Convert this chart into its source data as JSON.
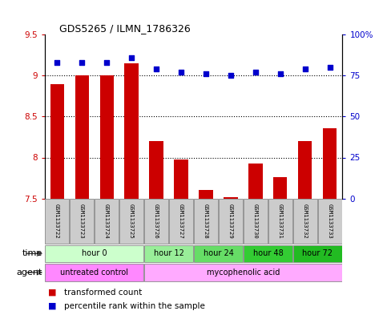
{
  "title": "GDS5265 / ILMN_1786326",
  "samples": [
    "GSM1133722",
    "GSM1133723",
    "GSM1133724",
    "GSM1133725",
    "GSM1133726",
    "GSM1133727",
    "GSM1133728",
    "GSM1133729",
    "GSM1133730",
    "GSM1133731",
    "GSM1133732",
    "GSM1133733"
  ],
  "transformed_count": [
    8.9,
    9.0,
    9.0,
    9.15,
    8.2,
    7.98,
    7.6,
    7.52,
    7.93,
    7.76,
    8.2,
    8.36
  ],
  "percentile_rank": [
    83,
    83,
    83,
    86,
    79,
    77,
    76,
    75,
    77,
    76,
    79,
    80
  ],
  "ylim_left": [
    7.5,
    9.5
  ],
  "ylim_right": [
    0,
    100
  ],
  "yticks_left": [
    7.5,
    8.0,
    8.5,
    9.0,
    9.5
  ],
  "ytick_labels_left": [
    "7.5",
    "8",
    "8.5",
    "9",
    "9.5"
  ],
  "yticks_right": [
    0,
    25,
    50,
    75,
    100
  ],
  "ytick_labels_right": [
    "0",
    "25",
    "50",
    "75",
    "100%"
  ],
  "bar_color": "#cc0000",
  "dot_color": "#0000cc",
  "bar_bottom": 7.5,
  "time_groups": [
    {
      "label": "hour 0",
      "start": 0,
      "end": 3,
      "color": "#ccffcc"
    },
    {
      "label": "hour 12",
      "start": 4,
      "end": 5,
      "color": "#99ee99"
    },
    {
      "label": "hour 24",
      "start": 6,
      "end": 7,
      "color": "#66dd66"
    },
    {
      "label": "hour 48",
      "start": 8,
      "end": 9,
      "color": "#33cc33"
    },
    {
      "label": "hour 72",
      "start": 10,
      "end": 11,
      "color": "#22bb22"
    }
  ],
  "agent_groups": [
    {
      "label": "untreated control",
      "start": 0,
      "end": 3,
      "color": "#ff88ff"
    },
    {
      "label": "mycophenolic acid",
      "start": 4,
      "end": 11,
      "color": "#ffaaff"
    }
  ],
  "legend_items": [
    {
      "label": "transformed count",
      "color": "#cc0000"
    },
    {
      "label": "percentile rank within the sample",
      "color": "#0000cc"
    }
  ],
  "sample_box_color": "#cccccc",
  "time_row_label": "time",
  "agent_row_label": "agent",
  "tick_color_left": "#cc0000",
  "tick_color_right": "#0000cc"
}
